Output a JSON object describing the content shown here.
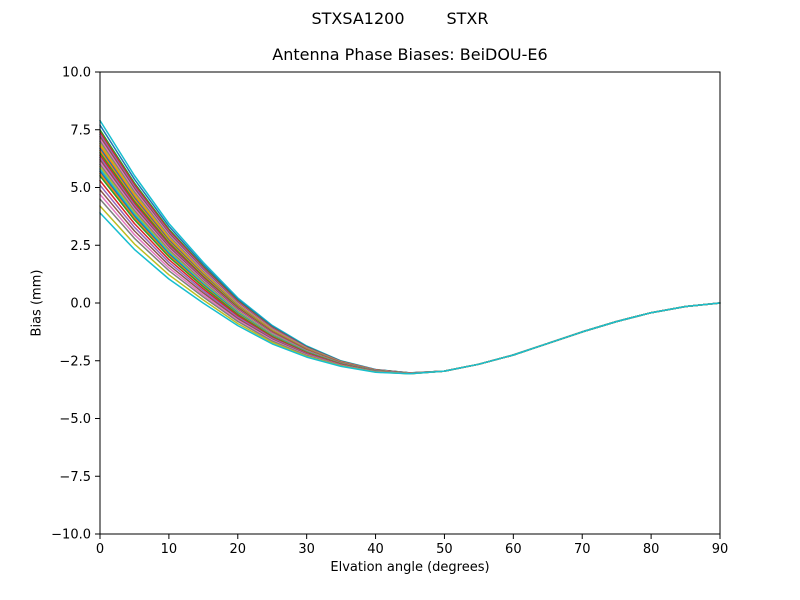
{
  "chart_data": {
    "type": "line",
    "suptitle": {
      "left": "STXSA1200",
      "right": "STXR"
    },
    "title": "Antenna Phase Biases: BeiDOU-E6",
    "xlabel": "Elvation angle (degrees)",
    "ylabel": "Bias (mm)",
    "xlim": [
      0,
      90
    ],
    "ylim": [
      -10,
      10
    ],
    "x_ticks": [
      0,
      10,
      20,
      30,
      40,
      50,
      60,
      70,
      80,
      90
    ],
    "x_tick_labels": [
      "0",
      "10",
      "20",
      "30",
      "40",
      "50",
      "60",
      "70",
      "80",
      "90"
    ],
    "y_ticks": [
      10,
      7.5,
      5,
      2.5,
      0,
      -2.5,
      -5,
      -7.5,
      -10
    ],
    "y_tick_labels": [
      "10.0",
      "7.5",
      "5.0",
      "2.5",
      "0.0",
      "−2.5",
      "−5.0",
      "−7.5",
      "−10.0"
    ],
    "grid": false,
    "legend": "none",
    "background": "#ffffff",
    "frame_color": "#000000",
    "x": [
      0,
      5,
      10,
      15,
      20,
      25,
      30,
      35,
      40,
      45,
      50,
      55,
      60,
      65,
      70,
      75,
      80,
      85,
      90
    ],
    "base_curve": [
      5.5,
      3.6,
      2.0,
      0.7,
      -0.5,
      -1.45,
      -2.15,
      -2.65,
      -2.95,
      -3.05,
      -2.95,
      -2.65,
      -2.25,
      -1.75,
      -1.25,
      -0.8,
      -0.42,
      -0.15,
      0.0
    ],
    "offset_decay": [
      1.0,
      0.8,
      0.6,
      0.44,
      0.3,
      0.2,
      0.12,
      0.06,
      0.03,
      0.01,
      0,
      0,
      0,
      0,
      0,
      0,
      0,
      0,
      0
    ],
    "series": [
      {
        "color": "#17becf",
        "offset": 2.4
      },
      {
        "color": "#1f77b4",
        "offset": 2.2
      },
      {
        "color": "#2ca02c",
        "offset": 2.0
      },
      {
        "color": "#d62728",
        "offset": 1.9
      },
      {
        "color": "#9467bd",
        "offset": 1.8
      },
      {
        "color": "#8c564b",
        "offset": 1.7
      },
      {
        "color": "#e377c2",
        "offset": 1.6
      },
      {
        "color": "#7f7f7f",
        "offset": 1.5
      },
      {
        "color": "#bcbd22",
        "offset": 1.4
      },
      {
        "color": "#ff7f0e",
        "offset": 1.3
      },
      {
        "color": "#1f77b4",
        "offset": 1.2
      },
      {
        "color": "#ff7f0e",
        "offset": 1.1
      },
      {
        "color": "#2ca02c",
        "offset": 1.0
      },
      {
        "color": "#d62728",
        "offset": 0.9
      },
      {
        "color": "#9467bd",
        "offset": 0.8
      },
      {
        "color": "#8c564b",
        "offset": 0.7
      },
      {
        "color": "#e377c2",
        "offset": 0.6
      },
      {
        "color": "#7f7f7f",
        "offset": 0.5
      },
      {
        "color": "#bcbd22",
        "offset": 0.4
      },
      {
        "color": "#17becf",
        "offset": 0.3
      },
      {
        "color": "#1f77b4",
        "offset": 0.2
      },
      {
        "color": "#ff7f0e",
        "offset": 0.1
      },
      {
        "color": "#2ca02c",
        "offset": 0.0
      },
      {
        "color": "#d62728",
        "offset": -0.2
      },
      {
        "color": "#9467bd",
        "offset": -0.4
      },
      {
        "color": "#8c564b",
        "offset": -0.6
      },
      {
        "color": "#e377c2",
        "offset": -0.8
      },
      {
        "color": "#7f7f7f",
        "offset": -1.0
      },
      {
        "color": "#bcbd22",
        "offset": -1.3
      },
      {
        "color": "#17becf",
        "offset": -1.6
      }
    ]
  }
}
